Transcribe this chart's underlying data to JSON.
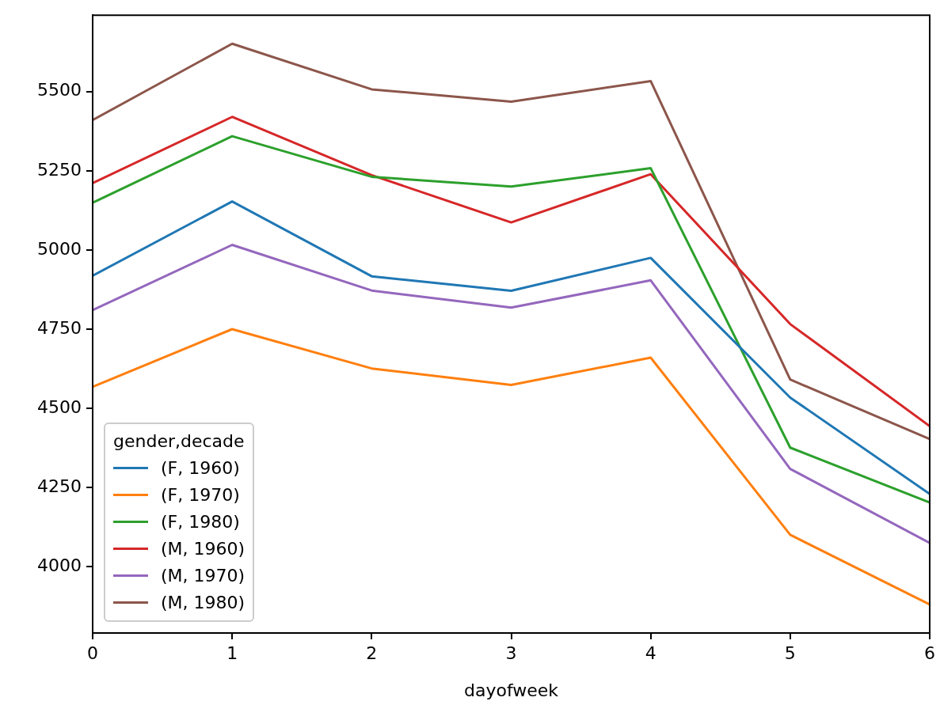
{
  "chart_data": {
    "type": "line",
    "xlabel": "dayofweek",
    "legend_title": "gender,decade",
    "legend": "bottom left",
    "grid": false,
    "line_style": "solid",
    "marker": "none",
    "x": [
      0,
      1,
      2,
      3,
      4,
      5,
      6
    ],
    "xlim": [
      0,
      6
    ],
    "xticks": [
      0,
      1,
      2,
      3,
      4,
      5,
      6
    ],
    "ylim": [
      3791,
      5741
    ],
    "yticks": [
      4000,
      4250,
      4500,
      4750,
      5000,
      5250,
      5500
    ],
    "series": [
      {
        "name": "(F, 1960)",
        "color": "#1f77b4",
        "values": [
          4919,
          5153,
          4917,
          4871,
          4975,
          4534,
          4230
        ]
      },
      {
        "name": "(F, 1970)",
        "color": "#ff7f0e",
        "values": [
          4568,
          4750,
          4626,
          4574,
          4660,
          4101,
          3881
        ]
      },
      {
        "name": "(F, 1980)",
        "color": "#2ca02c",
        "values": [
          5149,
          5359,
          5231,
          5200,
          5258,
          4376,
          4203
        ]
      },
      {
        "name": "(M, 1960)",
        "color": "#d62728",
        "values": [
          5211,
          5420,
          5236,
          5087,
          5239,
          4766,
          4444
        ]
      },
      {
        "name": "(M, 1970)",
        "color": "#9467bd",
        "values": [
          4810,
          5016,
          4872,
          4818,
          4904,
          4309,
          4075
        ]
      },
      {
        "name": "(M, 1980)",
        "color": "#8c564b",
        "values": [
          5410,
          5651,
          5507,
          5468,
          5533,
          4591,
          4403
        ]
      }
    ]
  }
}
